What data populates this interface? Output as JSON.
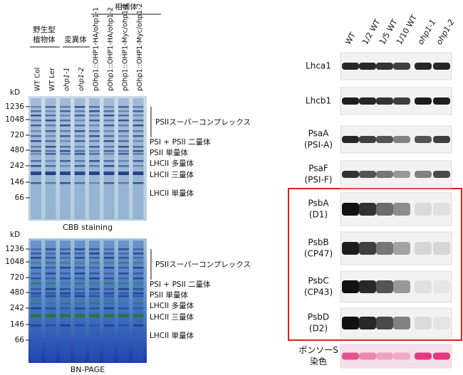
{
  "left": {
    "groups": {
      "wild_type": [
        "野生型",
        "植物体"
      ],
      "mutant": "変異体",
      "complemented": "相補体"
    },
    "lanes": [
      "WT Col",
      "WT Ler",
      "ohp1-1",
      "ohp1-2",
      "pOhp1::OHP1-HA/ohp1-1",
      "pOhp1::OHP1-HA/ohp1-2",
      "pOhp1::OHP1-Myc/ohp1-1",
      "pOhp1::OHP1-Myc/ohp1-2"
    ],
    "panels": [
      {
        "unit": "kD",
        "markers": [
          "1236",
          "1048",
          "720",
          "480",
          "242",
          "146",
          "66"
        ],
        "bands": [
          "PSIIスーパーコンプレックス",
          "PSI + PSII 二量体",
          "PSII 単量体",
          "LHCII 多量体",
          "LHCII 三量体",
          "LHCII 単量体"
        ],
        "caption": "CBB staining"
      },
      {
        "unit": "kD",
        "markers": [
          "1236",
          "1048",
          "720",
          "480",
          "242",
          "146",
          "66"
        ],
        "bands": [
          "PSIIスーパーコンプレックス",
          "PSI + PSII 二量体",
          "PSII 単量体",
          "LHCII 多量体",
          "LHCII 三量体",
          "LHCII 単量体"
        ],
        "caption": "BN-PAGE"
      }
    ]
  },
  "right": {
    "lanes": [
      "WT",
      "1/2 WT",
      "1/5 WT",
      "1/10 WT",
      "ohp1-1",
      "ohp1-2"
    ],
    "rows": [
      {
        "label": [
          "Lhca1"
        ]
      },
      {
        "label": [
          "Lhcb1"
        ]
      },
      {
        "label": [
          "PsaA",
          "(PSI-A)"
        ]
      },
      {
        "label": [
          "PsaF",
          "(PSI-F)"
        ]
      },
      {
        "label": [
          "PsbA",
          "(D1)"
        ]
      },
      {
        "label": [
          "PsbB",
          "(CP47)"
        ]
      },
      {
        "label": [
          "PsbC",
          "(CP43)"
        ]
      },
      {
        "label": [
          "PsbD",
          "(D2)"
        ]
      },
      {
        "label": [
          "ポンソーS",
          "染色"
        ]
      }
    ]
  }
}
